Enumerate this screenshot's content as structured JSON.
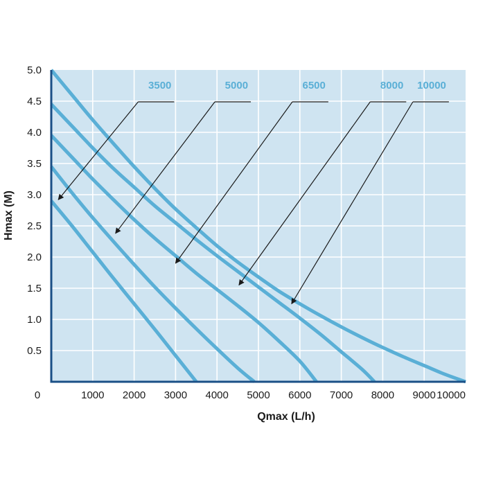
{
  "chart_data": {
    "type": "line",
    "title": "",
    "xlabel": "Qmax (L/h)",
    "ylabel": "Hmax (M)",
    "xlim": [
      0,
      10000
    ],
    "ylim": [
      0,
      5.0
    ],
    "x_ticks": [
      0,
      1000,
      2000,
      3000,
      4000,
      5000,
      6000,
      7000,
      8000,
      9000,
      10000
    ],
    "x_tick_labels": [
      "0",
      "1000",
      "2000",
      "3000",
      "4000",
      "5000",
      "6000",
      "7000",
      "8000",
      "9000",
      "10000"
    ],
    "y_ticks": [
      0.5,
      1.0,
      1.5,
      2.0,
      2.5,
      3.0,
      3.5,
      4.0,
      4.5,
      5.0
    ],
    "y_tick_labels": [
      "0.5",
      "1.0",
      "1.5",
      "2.0",
      "2.5",
      "3.0",
      "3.5",
      "4.0",
      "4.5",
      "5.0"
    ],
    "grid": true,
    "colors": {
      "plot_background": "#cfe4f1",
      "grid": "#ffffff",
      "curve": "#5aafd6",
      "label": "#5aafd6",
      "axis": "#1a4f86",
      "leader": "#1a1a1a"
    },
    "series": [
      {
        "name": "3500",
        "x": [
          0,
          500,
          1000,
          1500,
          2000,
          2500,
          3000,
          3500
        ],
        "y": [
          2.9,
          2.5,
          2.08,
          1.66,
          1.25,
          0.84,
          0.42,
          0.0
        ]
      },
      {
        "name": "5000",
        "x": [
          0,
          500,
          1000,
          1500,
          2000,
          2500,
          3000,
          3500,
          4000,
          4500,
          4900
        ],
        "y": [
          3.45,
          3.03,
          2.63,
          2.25,
          1.88,
          1.52,
          1.18,
          0.85,
          0.53,
          0.22,
          0.0
        ]
      },
      {
        "name": "6500",
        "x": [
          0,
          500,
          1000,
          1500,
          2000,
          2500,
          3000,
          3500,
          4000,
          4500,
          5000,
          5500,
          6000,
          6400
        ],
        "y": [
          3.95,
          3.6,
          3.25,
          2.92,
          2.6,
          2.3,
          2.02,
          1.74,
          1.48,
          1.22,
          0.95,
          0.65,
          0.33,
          0.0
        ]
      },
      {
        "name": "8000",
        "x": [
          0,
          500,
          1000,
          1500,
          2000,
          2500,
          3000,
          3500,
          4000,
          4500,
          5000,
          5500,
          6000,
          6500,
          7000,
          7500,
          7800
        ],
        "y": [
          4.45,
          4.1,
          3.75,
          3.42,
          3.12,
          2.82,
          2.55,
          2.28,
          2.02,
          1.77,
          1.52,
          1.27,
          1.02,
          0.76,
          0.48,
          0.2,
          0.0
        ]
      },
      {
        "name": "10000",
        "x": [
          0,
          500,
          1000,
          1500,
          2000,
          2500,
          3000,
          3500,
          4000,
          4500,
          5000,
          5500,
          6000,
          6500,
          7000,
          7500,
          8000,
          8500,
          9000,
          9500,
          10000
        ],
        "y": [
          5.0,
          4.6,
          4.2,
          3.82,
          3.45,
          3.1,
          2.77,
          2.47,
          2.18,
          1.92,
          1.68,
          1.45,
          1.25,
          1.06,
          0.88,
          0.71,
          0.55,
          0.4,
          0.26,
          0.12,
          0.0
        ]
      }
    ],
    "annotations": [
      {
        "series": "3500",
        "text": "3500",
        "label_x": 2900,
        "label_y": 4.7,
        "point_x": 170,
        "point_y": 2.92
      },
      {
        "series": "5000",
        "text": "5000",
        "label_x": 4750,
        "label_y": 4.7,
        "point_x": 1550,
        "point_y": 2.38
      },
      {
        "series": "6500",
        "text": "6500",
        "label_x": 6620,
        "label_y": 4.7,
        "point_x": 3000,
        "point_y": 1.9
      },
      {
        "series": "8000",
        "text": "8000",
        "label_x": 8500,
        "label_y": 4.7,
        "point_x": 4530,
        "point_y": 1.55
      },
      {
        "series": "10000",
        "text": "10000",
        "label_x": 9530,
        "label_y": 4.7,
        "point_x": 5800,
        "point_y": 1.25
      }
    ]
  }
}
